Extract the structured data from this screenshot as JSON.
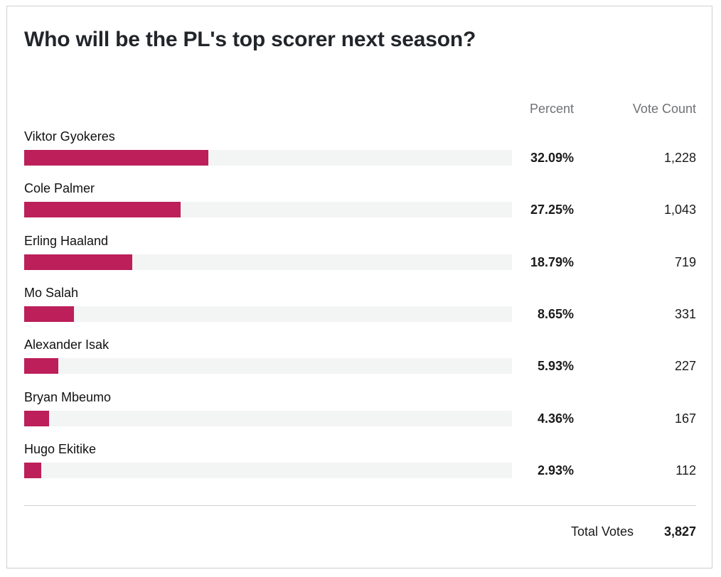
{
  "poll": {
    "title": "Who will be the PL's top scorer next season?",
    "percent_header": "Percent",
    "votes_header": "Vote Count",
    "total_label": "Total Votes",
    "total_value": "3,827"
  },
  "colors": {
    "bar_fill": "#bc1f5a",
    "bar_track": "#f3f4f4"
  },
  "chart_data": {
    "type": "bar",
    "orientation": "horizontal",
    "categories": [
      "Viktor Gyokeres",
      "Cole Palmer",
      "Erling Haaland",
      "Mo Salah",
      "Alexander Isak",
      "Bryan Mbeumo",
      "Hugo Ekitike"
    ],
    "series": [
      {
        "values": [
          32.09,
          27.25,
          18.79,
          8.65,
          5.93,
          4.36,
          2.93
        ]
      }
    ],
    "percent_labels": [
      "32.09%",
      "27.25%",
      "18.79%",
      "8.65%",
      "5.93%",
      "4.36%",
      "2.93%"
    ],
    "vote_counts": [
      "1,228",
      "1,043",
      "719",
      "331",
      "227",
      "167",
      "112"
    ],
    "xlim": [
      0,
      85
    ],
    "grid": false
  }
}
